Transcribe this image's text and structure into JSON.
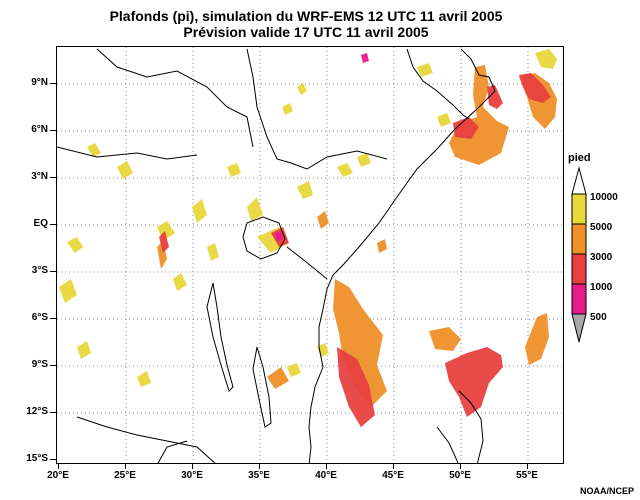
{
  "title_line1": "Plafonds (pi), simulation du WRF-EMS 12 UTC 11 avril 2005",
  "title_line2": "Prévision valide 17 UTC 11 avril 2005",
  "lat_labels": [
    "9°N",
    "6°N",
    "3°N",
    "EQ",
    "3°S",
    "6°S",
    "9°S",
    "12°S",
    "15°S"
  ],
  "lon_labels": [
    "20°E",
    "25°E",
    "30°E",
    "35°E",
    "40°E",
    "45°E",
    "50°E",
    "55°E"
  ],
  "legend": {
    "title": "pied",
    "labels": [
      "10000",
      "5000",
      "3000",
      "1000",
      "500"
    ],
    "colors": [
      "#e8d83a",
      "#f0902a",
      "#e84040",
      "#e81a8c",
      "#a8a8a8"
    ]
  },
  "credit": "NOAA/NCEP"
}
